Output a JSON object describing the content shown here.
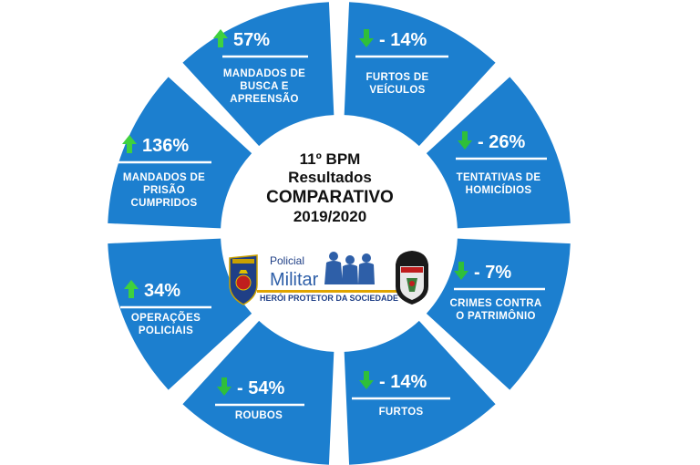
{
  "center": {
    "title_lines": [
      "11º BPM",
      "Resultados",
      "COMPARATIVO",
      "2019/2020"
    ]
  },
  "banner": {
    "word1": "Policial",
    "word2": "Militar",
    "slogan": "HERÓI PROTETOR DA SOCIEDADE"
  },
  "segments": [
    {
      "id": "mandados-busca",
      "value": "57%",
      "trend": "up",
      "label_lines": [
        "MANDADOS DE",
        "BUSCA E",
        "APREENSÃO"
      ]
    },
    {
      "id": "furtos-veiculos",
      "value": "- 14%",
      "trend": "down",
      "label_lines": [
        "FURTOS DE",
        "VEÍCULOS"
      ]
    },
    {
      "id": "tentativas-homicidios",
      "value": "- 26%",
      "trend": "down",
      "label_lines": [
        "TENTATIVAS DE",
        "HOMICÍDIOS"
      ]
    },
    {
      "id": "crimes-patrimonio",
      "value": "- 7%",
      "trend": "down",
      "label_lines": [
        "CRIMES CONTRA",
        "O PATRIMÔNIO"
      ]
    },
    {
      "id": "furtos",
      "value": "- 14%",
      "trend": "down",
      "label_lines": [
        "FURTOS"
      ]
    },
    {
      "id": "roubos",
      "value": "- 54%",
      "trend": "down",
      "label_lines": [
        "ROUBOS"
      ]
    },
    {
      "id": "operacoes-policiais",
      "value": "34%",
      "trend": "up",
      "label_lines": [
        "OPERAÇÕES",
        "POLICIAIS"
      ]
    },
    {
      "id": "mandados-prisao",
      "value": "136%",
      "trend": "up",
      "label_lines": [
        "MANDADOS DE",
        "PRISÃO",
        "CUMPRIDOS"
      ]
    }
  ],
  "colors": {
    "segment": "#1c7fcf",
    "up_arrow": "#3fd13f",
    "down_arrow": "#2fbf3a",
    "banner_gold": "#e0a400",
    "banner_blue": "#2e5fa8"
  }
}
